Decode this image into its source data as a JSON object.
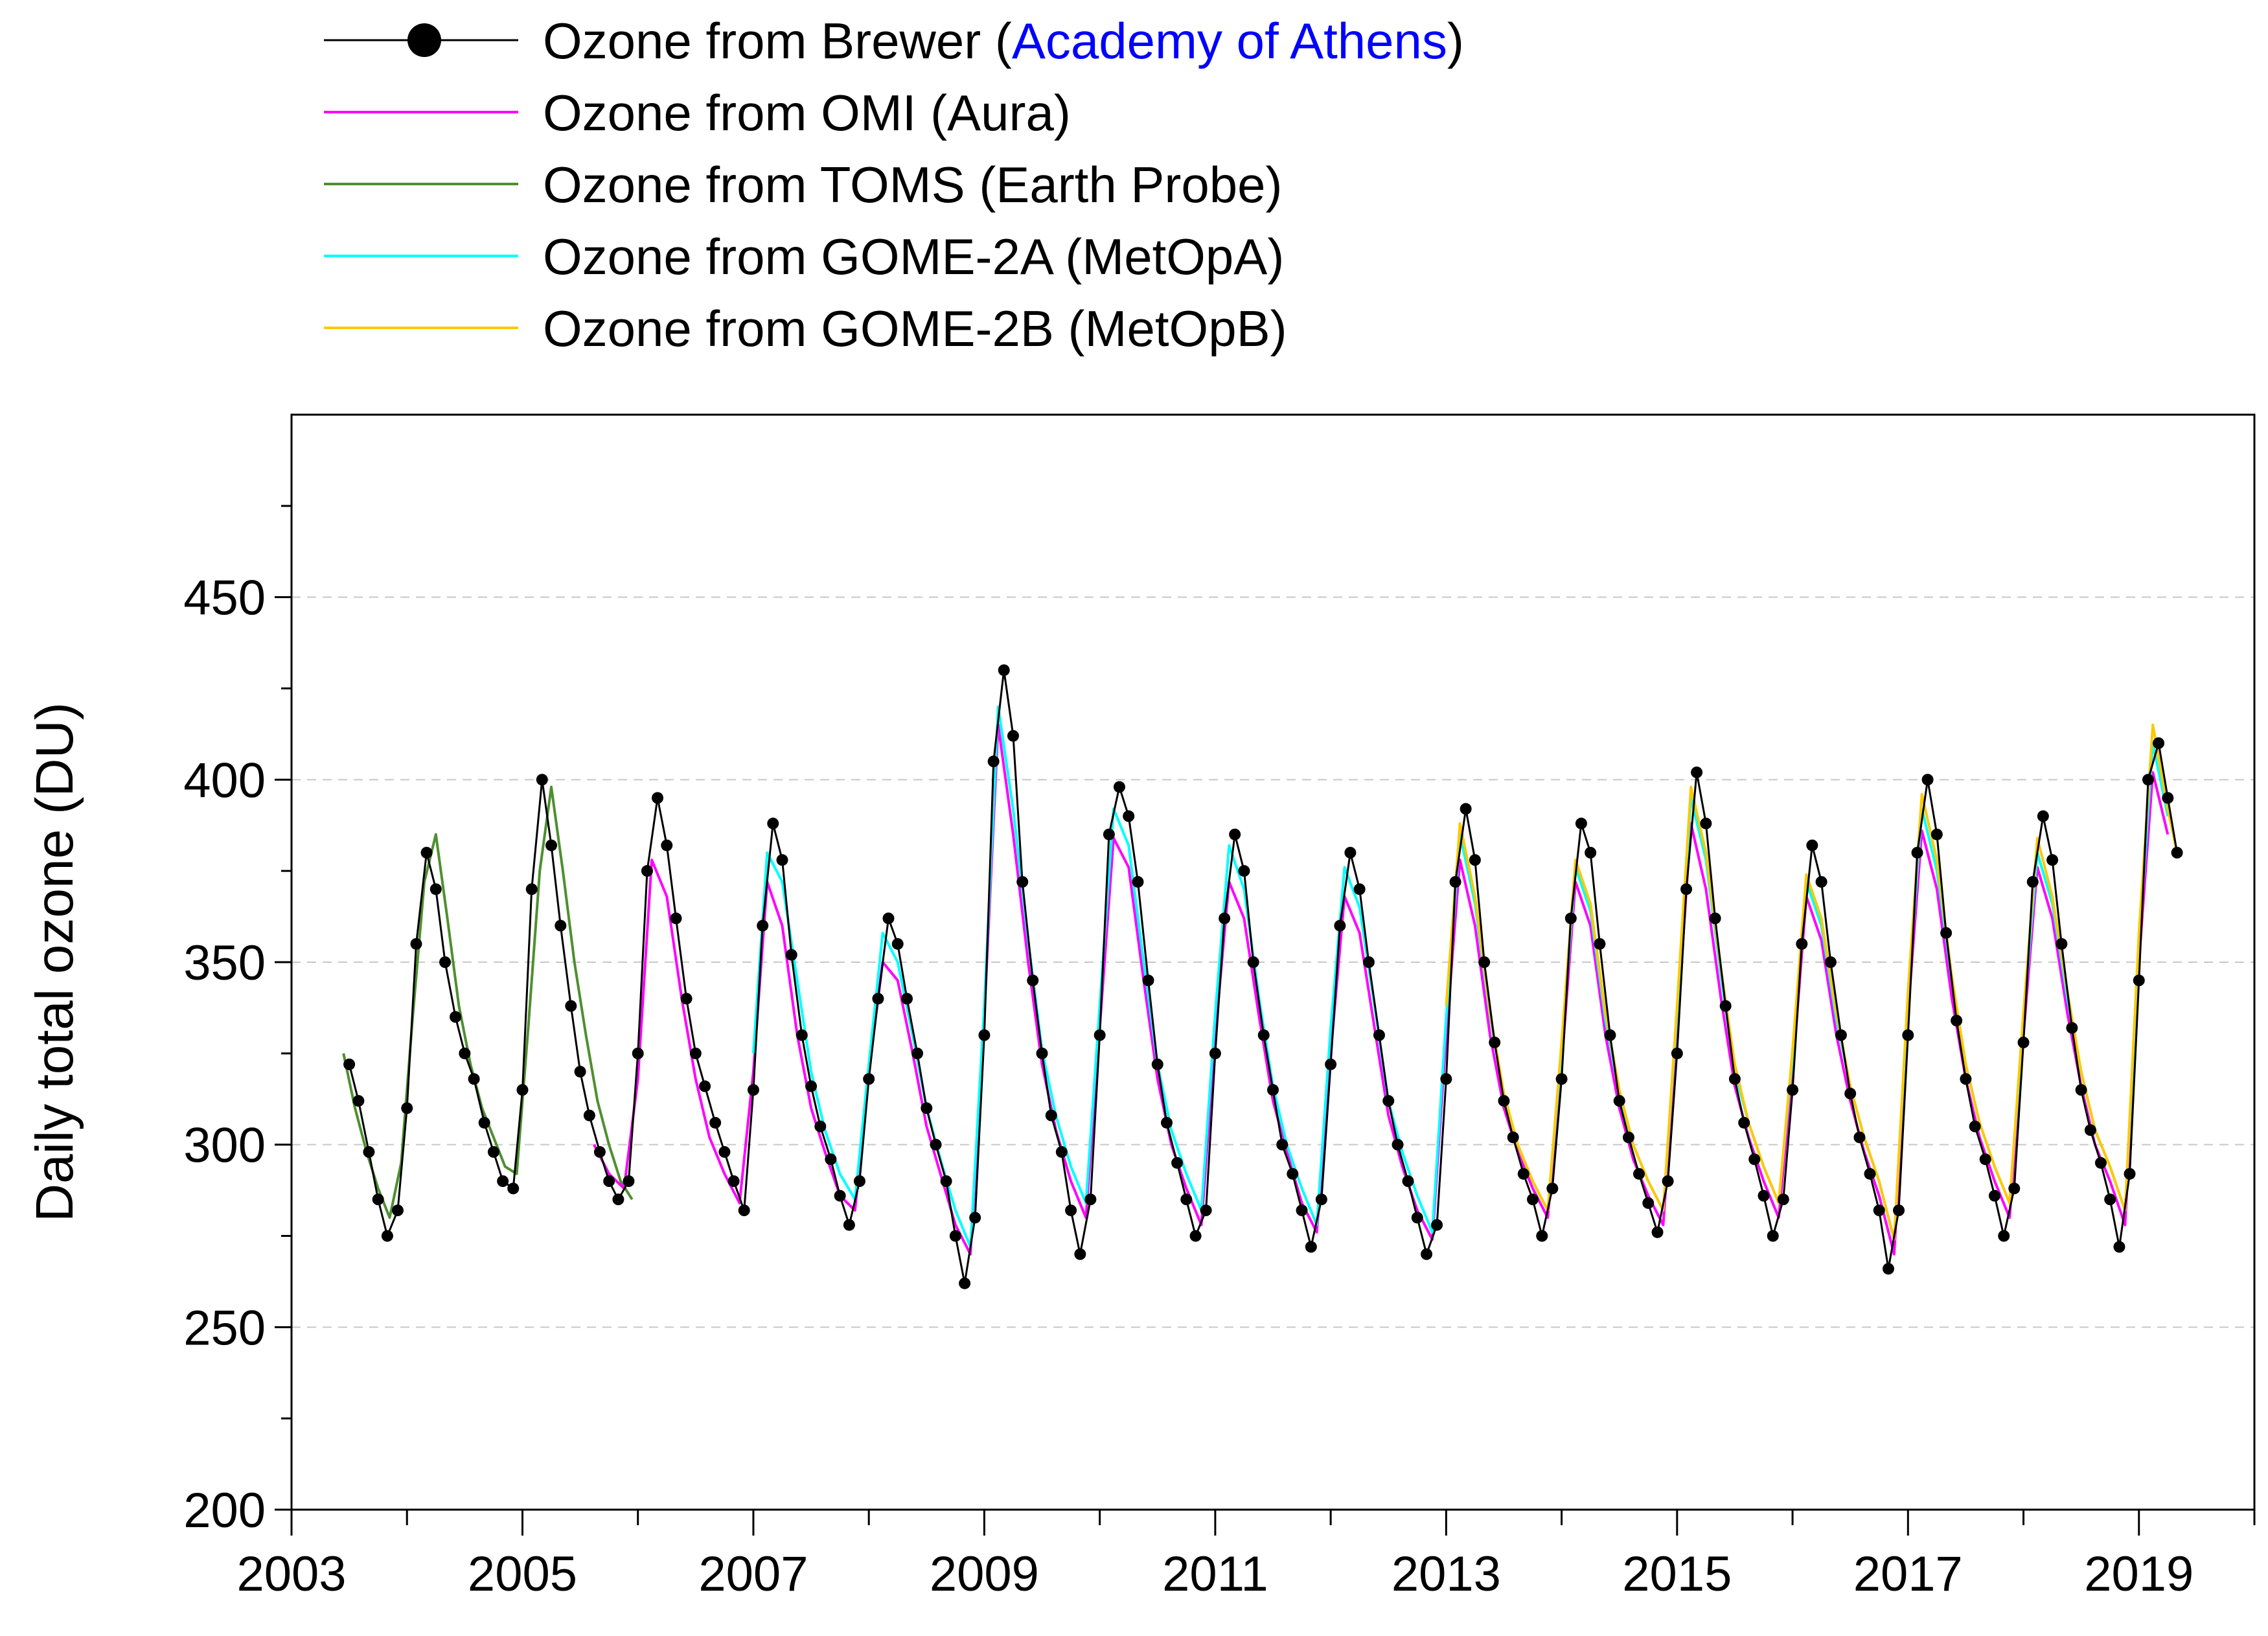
{
  "chart_data": {
    "type": "line",
    "title": "",
    "ylabel": "Daily total ozone (DU)",
    "xlabel": "",
    "xlim": [
      2003,
      2020
    ],
    "ylim": [
      200,
      500
    ],
    "x_ticks": [
      2003,
      2005,
      2007,
      2009,
      2011,
      2013,
      2015,
      2017,
      2019
    ],
    "x_minor_ticks": [
      2004,
      2006,
      2008,
      2010,
      2012,
      2014,
      2016,
      2018,
      2020
    ],
    "y_ticks": [
      200,
      250,
      300,
      350,
      400,
      450
    ],
    "y_minor_ticks": [
      225,
      275,
      325,
      375,
      425,
      475
    ],
    "grid": {
      "y_major_dashed": true,
      "x": false
    },
    "legend": {
      "position": "top-left, outside plot",
      "entries": [
        {
          "parts": [
            {
              "text": "Ozone from Brewer (",
              "color": "#000000"
            },
            {
              "text": "Academy of Athens",
              "color": "#0000ff"
            },
            {
              "text": ")",
              "color": "#000000"
            }
          ],
          "color": "#000000",
          "marker": "circle"
        },
        {
          "parts": [
            {
              "text": "Ozone from OMI (Aura)",
              "color": "#000000"
            }
          ],
          "color": "#ff00ff",
          "marker": "none"
        },
        {
          "parts": [
            {
              "text": "Ozone from TOMS (Earth Probe)",
              "color": "#000000"
            }
          ],
          "color": "#4e8f2f",
          "marker": "none"
        },
        {
          "parts": [
            {
              "text": "Ozone from GOME-2A (MetOpA)",
              "color": "#000000"
            }
          ],
          "color": "#00ffff",
          "marker": "none"
        },
        {
          "parts": [
            {
              "text": "Ozone from GOME-2B (MetOpB)",
              "color": "#000000"
            }
          ],
          "color": "#ffc800",
          "marker": "none"
        }
      ]
    },
    "series": [
      {
        "name": "Ozone from Brewer (Academy of Athens)",
        "color": "#000000",
        "marker": "circle",
        "x": [
          2003.5,
          2003.58,
          2003.67,
          2003.75,
          2003.83,
          2003.92,
          2004.0,
          2004.08,
          2004.17,
          2004.25,
          2004.33,
          2004.42,
          2004.5,
          2004.58,
          2004.67,
          2004.75,
          2004.83,
          2004.92,
          2005.0,
          2005.08,
          2005.17,
          2005.25,
          2005.33,
          2005.42,
          2005.5,
          2005.58,
          2005.67,
          2005.75,
          2005.83,
          2005.92,
          2006.0,
          2006.08,
          2006.17,
          2006.25,
          2006.33,
          2006.42,
          2006.5,
          2006.58,
          2006.67,
          2006.75,
          2006.83,
          2006.92,
          2007.0,
          2007.08,
          2007.17,
          2007.25,
          2007.33,
          2007.42,
          2007.5,
          2007.58,
          2007.67,
          2007.75,
          2007.83,
          2007.92,
          2008.0,
          2008.08,
          2008.17,
          2008.25,
          2008.33,
          2008.42,
          2008.5,
          2008.58,
          2008.67,
          2008.75,
          2008.83,
          2008.92,
          2009.0,
          2009.08,
          2009.17,
          2009.25,
          2009.33,
          2009.42,
          2009.5,
          2009.58,
          2009.67,
          2009.75,
          2009.83,
          2009.92,
          2010.0,
          2010.08,
          2010.17,
          2010.25,
          2010.33,
          2010.42,
          2010.5,
          2010.58,
          2010.67,
          2010.75,
          2010.83,
          2010.92,
          2011.0,
          2011.08,
          2011.17,
          2011.25,
          2011.33,
          2011.42,
          2011.5,
          2011.58,
          2011.67,
          2011.75,
          2011.83,
          2011.92,
          2012.0,
          2012.08,
          2012.17,
          2012.25,
          2012.33,
          2012.42,
          2012.5,
          2012.58,
          2012.67,
          2012.75,
          2012.83,
          2012.92,
          2013.0,
          2013.08,
          2013.17,
          2013.25,
          2013.33,
          2013.42,
          2013.5,
          2013.58,
          2013.67,
          2013.75,
          2013.83,
          2013.92,
          2014.0,
          2014.08,
          2014.17,
          2014.25,
          2014.33,
          2014.42,
          2014.5,
          2014.58,
          2014.67,
          2014.75,
          2014.83,
          2014.92,
          2015.0,
          2015.08,
          2015.17,
          2015.25,
          2015.33,
          2015.42,
          2015.5,
          2015.58,
          2015.67,
          2015.75,
          2015.83,
          2015.92,
          2016.0,
          2016.08,
          2016.17,
          2016.25,
          2016.33,
          2016.42,
          2016.5,
          2016.58,
          2016.67,
          2016.75,
          2016.83,
          2016.92,
          2017.0,
          2017.08,
          2017.17,
          2017.25,
          2017.33,
          2017.42,
          2017.5,
          2017.58,
          2017.67,
          2017.75,
          2017.83,
          2017.92,
          2018.0,
          2018.08,
          2018.17,
          2018.25,
          2018.33,
          2018.42,
          2018.5,
          2018.58,
          2018.67,
          2018.75,
          2018.83,
          2018.92,
          2019.0,
          2019.08,
          2019.17,
          2019.25,
          2019.33
        ],
        "y": [
          322,
          312,
          298,
          285,
          275,
          282,
          310,
          355,
          380,
          370,
          350,
          335,
          325,
          318,
          306,
          298,
          290,
          288,
          315,
          370,
          400,
          382,
          360,
          338,
          320,
          308,
          298,
          290,
          285,
          290,
          325,
          375,
          395,
          382,
          362,
          340,
          325,
          316,
          306,
          298,
          290,
          282,
          315,
          360,
          388,
          378,
          352,
          330,
          316,
          305,
          296,
          286,
          278,
          290,
          318,
          340,
          362,
          355,
          340,
          325,
          310,
          300,
          290,
          275,
          262,
          280,
          330,
          405,
          430,
          412,
          372,
          345,
          325,
          308,
          298,
          282,
          270,
          285,
          330,
          385,
          398,
          390,
          372,
          345,
          322,
          306,
          295,
          285,
          275,
          282,
          325,
          362,
          385,
          375,
          350,
          330,
          315,
          300,
          292,
          282,
          272,
          285,
          322,
          360,
          380,
          370,
          350,
          330,
          312,
          300,
          290,
          280,
          270,
          278,
          318,
          372,
          392,
          378,
          350,
          328,
          312,
          302,
          292,
          285,
          275,
          288,
          318,
          362,
          388,
          380,
          355,
          330,
          312,
          302,
          292,
          284,
          276,
          290,
          325,
          370,
          402,
          388,
          362,
          338,
          318,
          306,
          296,
          286,
          275,
          285,
          315,
          355,
          382,
          372,
          350,
          330,
          314,
          302,
          292,
          282,
          266,
          282,
          330,
          380,
          400,
          385,
          358,
          334,
          318,
          305,
          296,
          286,
          275,
          288,
          328,
          372,
          390,
          378,
          355,
          332,
          315,
          304,
          295,
          285,
          272,
          292,
          345,
          400,
          410,
          395,
          380
        ]
      },
      {
        "name": "Ozone from OMI (Aura)",
        "color": "#ff00ff",
        "marker": "none",
        "x": [
          2005.62,
          2005.75,
          2005.88,
          2006.0,
          2006.12,
          2006.25,
          2006.38,
          2006.5,
          2006.62,
          2006.75,
          2006.88,
          2007.0,
          2007.12,
          2007.25,
          2007.38,
          2007.5,
          2007.62,
          2007.75,
          2007.88,
          2008.0,
          2008.12,
          2008.25,
          2008.38,
          2008.5,
          2008.62,
          2008.75,
          2008.88,
          2009.0,
          2009.12,
          2009.25,
          2009.38,
          2009.5,
          2009.62,
          2009.75,
          2009.88,
          2010.0,
          2010.12,
          2010.25,
          2010.38,
          2010.5,
          2010.62,
          2010.75,
          2010.88,
          2011.0,
          2011.12,
          2011.25,
          2011.38,
          2011.5,
          2011.62,
          2011.75,
          2011.88,
          2012.0,
          2012.12,
          2012.25,
          2012.38,
          2012.5,
          2012.62,
          2012.75,
          2012.88,
          2013.0,
          2013.12,
          2013.25,
          2013.38,
          2013.5,
          2013.62,
          2013.75,
          2013.88,
          2014.0,
          2014.12,
          2014.25,
          2014.38,
          2014.5,
          2014.62,
          2014.75,
          2014.88,
          2015.0,
          2015.12,
          2015.25,
          2015.38,
          2015.5,
          2015.62,
          2015.75,
          2015.88,
          2016.0,
          2016.12,
          2016.25,
          2016.38,
          2016.5,
          2016.62,
          2016.75,
          2016.88,
          2017.0,
          2017.12,
          2017.25,
          2017.38,
          2017.5,
          2017.62,
          2017.75,
          2017.88,
          2018.0,
          2018.12,
          2018.25,
          2018.38,
          2018.5,
          2018.62,
          2018.75,
          2018.88,
          2019.0,
          2019.12,
          2019.25
        ],
        "y": [
          300,
          292,
          288,
          318,
          378,
          368,
          340,
          318,
          302,
          292,
          284,
          320,
          372,
          360,
          330,
          310,
          298,
          286,
          282,
          320,
          350,
          345,
          325,
          305,
          292,
          278,
          270,
          335,
          415,
          385,
          350,
          322,
          304,
          290,
          280,
          332,
          384,
          376,
          345,
          318,
          300,
          288,
          278,
          330,
          372,
          362,
          335,
          312,
          298,
          284,
          276,
          325,
          368,
          358,
          332,
          308,
          294,
          282,
          274,
          330,
          378,
          360,
          330,
          310,
          298,
          288,
          280,
          322,
          372,
          360,
          330,
          310,
          296,
          286,
          278,
          332,
          388,
          370,
          340,
          316,
          302,
          290,
          280,
          320,
          368,
          356,
          330,
          312,
          298,
          286,
          270,
          336,
          386,
          370,
          340,
          318,
          302,
          290,
          280,
          330,
          376,
          362,
          336,
          316,
          300,
          290,
          278,
          350,
          402,
          385
        ]
      },
      {
        "name": "Ozone from TOMS (Earth Probe)",
        "color": "#4e8f2f",
        "marker": "none",
        "x": [
          2003.45,
          2003.55,
          2003.65,
          2003.75,
          2003.85,
          2003.95,
          2004.05,
          2004.15,
          2004.25,
          2004.35,
          2004.45,
          2004.55,
          2004.65,
          2004.75,
          2004.85,
          2004.95,
          2005.05,
          2005.15,
          2005.25,
          2005.35,
          2005.45,
          2005.55,
          2005.65,
          2005.75,
          2005.85,
          2005.95
        ],
        "y": [
          325,
          310,
          298,
          288,
          280,
          295,
          335,
          372,
          385,
          362,
          338,
          322,
          310,
          302,
          294,
          292,
          332,
          375,
          398,
          375,
          350,
          330,
          312,
          300,
          290,
          285
        ]
      },
      {
        "name": "Ozone from GOME-2A (MetOpA)",
        "color": "#00ffff",
        "marker": "none",
        "x": [
          2007.0,
          2007.12,
          2007.25,
          2007.38,
          2007.5,
          2007.62,
          2007.75,
          2007.88,
          2008.0,
          2008.12,
          2008.25,
          2008.38,
          2008.5,
          2008.62,
          2008.75,
          2008.88,
          2009.0,
          2009.12,
          2009.25,
          2009.38,
          2009.5,
          2009.62,
          2009.75,
          2009.88,
          2010.0,
          2010.12,
          2010.25,
          2010.38,
          2010.5,
          2010.62,
          2010.75,
          2010.88,
          2011.0,
          2011.12,
          2011.25,
          2011.38,
          2011.5,
          2011.62,
          2011.75,
          2011.88,
          2012.0,
          2012.12,
          2012.25,
          2012.38,
          2012.5,
          2012.62,
          2012.75,
          2012.88,
          2013.0,
          2013.12,
          2013.25,
          2013.38,
          2013.5,
          2013.62,
          2013.75,
          2013.88,
          2014.0,
          2014.12,
          2014.25,
          2014.38,
          2014.5,
          2014.62,
          2014.75,
          2014.88,
          2015.0,
          2015.12,
          2015.25,
          2015.38,
          2015.5,
          2015.62,
          2015.75,
          2015.88,
          2016.0,
          2016.12,
          2016.25,
          2016.38,
          2016.5,
          2016.62,
          2016.75,
          2016.88,
          2017.0,
          2017.12,
          2017.25,
          2017.38,
          2017.5,
          2017.62,
          2017.75,
          2017.88,
          2018.0,
          2018.12,
          2018.25,
          2018.38,
          2018.5,
          2018.62,
          2018.75,
          2018.88,
          2019.0,
          2019.12,
          2019.25
        ],
        "y": [
          325,
          380,
          372,
          345,
          320,
          304,
          292,
          285,
          322,
          358,
          350,
          330,
          310,
          296,
          282,
          272,
          338,
          420,
          392,
          356,
          326,
          308,
          294,
          284,
          338,
          392,
          382,
          350,
          322,
          304,
          292,
          282,
          336,
          382,
          370,
          340,
          316,
          300,
          288,
          278,
          332,
          376,
          365,
          338,
          312,
          298,
          286,
          276,
          335,
          385,
          366,
          335,
          314,
          300,
          290,
          282,
          326,
          376,
          364,
          334,
          314,
          300,
          290,
          282,
          336,
          395,
          378,
          346,
          320,
          306,
          294,
          284,
          324,
          372,
          360,
          334,
          316,
          302,
          290,
          274,
          340,
          392,
          375,
          345,
          322,
          306,
          294,
          284,
          334,
          380,
          366,
          340,
          320,
          304,
          294,
          282,
          354,
          410,
          390
        ]
      },
      {
        "name": "Ozone from GOME-2B (MetOpB)",
        "color": "#ffc800",
        "marker": "none",
        "x": [
          2013.0,
          2013.12,
          2013.25,
          2013.38,
          2013.5,
          2013.62,
          2013.75,
          2013.88,
          2014.0,
          2014.12,
          2014.25,
          2014.38,
          2014.5,
          2014.62,
          2014.75,
          2014.88,
          2015.0,
          2015.12,
          2015.25,
          2015.38,
          2015.5,
          2015.62,
          2015.75,
          2015.88,
          2016.0,
          2016.12,
          2016.25,
          2016.38,
          2016.5,
          2016.62,
          2016.75,
          2016.88,
          2017.0,
          2017.12,
          2017.25,
          2017.38,
          2017.5,
          2017.62,
          2017.75,
          2017.88,
          2018.0,
          2018.12,
          2018.25,
          2018.38,
          2018.5,
          2018.62,
          2018.75,
          2018.88,
          2019.0,
          2019.12,
          2019.25,
          2019.33
        ],
        "y": [
          338,
          388,
          368,
          336,
          314,
          300,
          290,
          282,
          328,
          378,
          366,
          336,
          315,
          300,
          290,
          282,
          338,
          398,
          380,
          348,
          322,
          306,
          294,
          284,
          326,
          374,
          362,
          336,
          316,
          302,
          290,
          274,
          342,
          396,
          378,
          346,
          322,
          306,
          294,
          284,
          336,
          384,
          368,
          342,
          320,
          304,
          294,
          282,
          358,
          415,
          392,
          380
        ]
      }
    ]
  }
}
